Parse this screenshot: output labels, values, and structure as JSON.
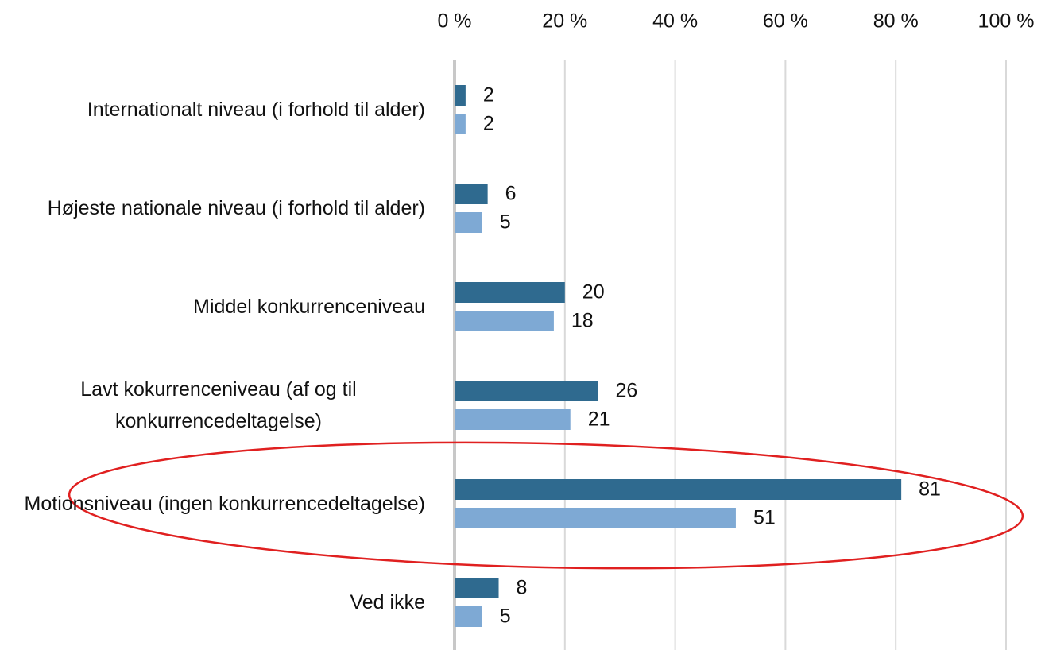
{
  "chart_data": {
    "type": "hbar",
    "categories": [
      "Internationalt niveau (i forhold til alder)",
      "Højeste nationale niveau (i forhold til alder)",
      "Middel konkurrenceniveau",
      "Lavt kokurrenceniveau (af og til konkurrencedeltagelse)",
      "Motionsniveau (ingen konkurrencedeltagelse)",
      "Ved ikke"
    ],
    "series": [
      {
        "color": "#2f6a8f",
        "values": [
          2,
          6,
          20,
          26,
          81,
          8
        ]
      },
      {
        "color": "#7ea9d4",
        "values": [
          2,
          5,
          18,
          21,
          51,
          5
        ]
      }
    ],
    "xlim": [
      0,
      100
    ],
    "xticks": [
      {
        "value": 0,
        "label": "0 %"
      },
      {
        "value": 20,
        "label": "20 %"
      },
      {
        "value": 40,
        "label": "40 %"
      },
      {
        "value": 60,
        "label": "60 %"
      },
      {
        "value": 80,
        "label": "80 %"
      },
      {
        "value": 100,
        "label": "100 %"
      }
    ],
    "grid": true
  }
}
